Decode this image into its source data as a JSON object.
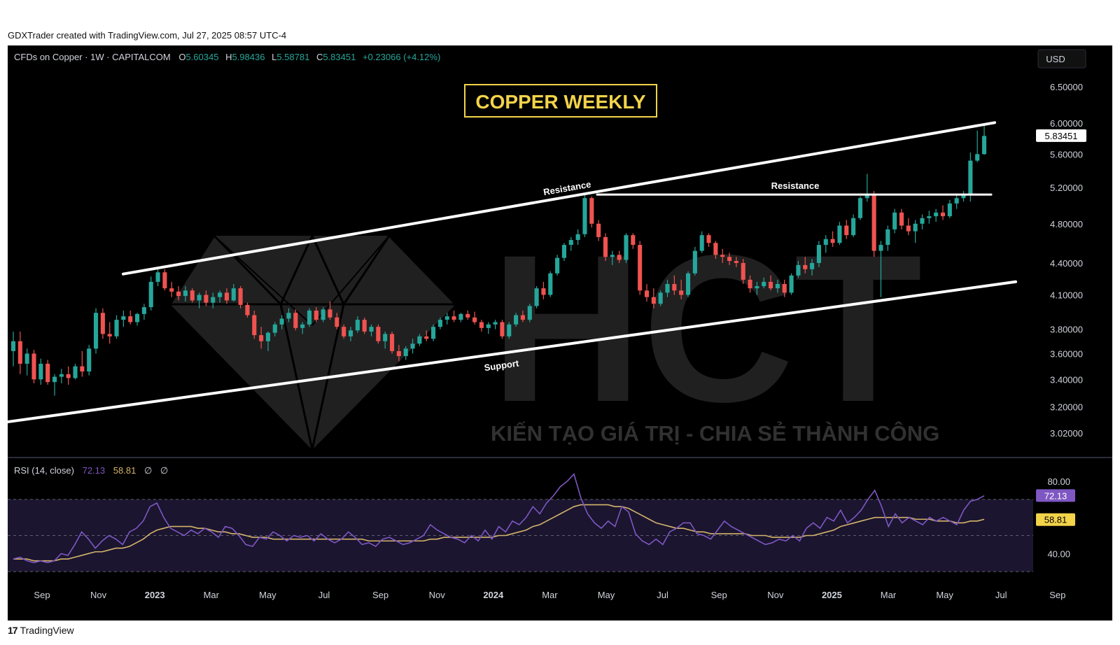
{
  "credit": "GDXTrader created with TradingView.com, Jul 27, 2025 08:57 UTC-4",
  "footer": {
    "logo_glyph": "17",
    "brand": "TradingView"
  },
  "colors": {
    "up": "#26a69a",
    "down": "#ef5350",
    "rsi": "#7e57c2",
    "rsi_ma": "#d4b46a",
    "title_accent": "#f3d34a",
    "background": "#000000"
  },
  "header": {
    "symbol": "CFDs on Copper · 1W · CAPITALCOM",
    "o_label": "O",
    "o_value": "5.60345",
    "h_label": "H",
    "h_value": "5.98436",
    "l_label": "L",
    "l_value": "5.58781",
    "c_label": "C",
    "c_value": "5.83451",
    "change": "+0.23066 (+4.12%)"
  },
  "currency": "USD",
  "banner_title": "COPPER WEEKLY",
  "watermark": {
    "logo_text": "HCT",
    "tagline": "KIẾN TẠO GIÁ TRỊ - CHIA SẺ THÀNH CÔNG"
  },
  "annotations": {
    "resistance_1": "Resistance",
    "resistance_2": "Resistance",
    "support": "Support"
  },
  "price_axis": [
    "6.50000",
    "6.00000",
    "5.60000",
    "5.20000",
    "4.80000",
    "4.40000",
    "4.10000",
    "3.80000",
    "3.60000",
    "3.40000",
    "3.20000",
    "3.02000"
  ],
  "last_price_label": "5.83451",
  "rsi_header": {
    "label": "RSI (14, close)",
    "rsi_value": "72.13",
    "ma_value": "58.81",
    "icon_a": "∅",
    "icon_b": "∅"
  },
  "rsi_axis": [
    "80.00",
    "40.00"
  ],
  "rsi_badges": {
    "rsi": "72.13",
    "ma": "58.81"
  },
  "time_axis": [
    "Sep",
    "Nov",
    "2023",
    "Mar",
    "May",
    "Jul",
    "Sep",
    "Nov",
    "2024",
    "Mar",
    "May",
    "Jul",
    "Sep",
    "Nov",
    "2025",
    "Mar",
    "May",
    "Jul",
    "Sep"
  ],
  "chart_data": {
    "type": "candlestick",
    "title": "COPPER WEEKLY",
    "symbol": "CFDs on Copper · 1W · CAPITALCOM",
    "x_range": [
      "2022-08-15",
      "2025-07-21"
    ],
    "y_scale": "log",
    "y_range": [
      2.9,
      6.8
    ],
    "candles_ohlc": [
      [
        3.62,
        3.78,
        3.5,
        3.7
      ],
      [
        3.7,
        3.78,
        3.44,
        3.52
      ],
      [
        3.52,
        3.64,
        3.43,
        3.6
      ],
      [
        3.6,
        3.63,
        3.37,
        3.4
      ],
      [
        3.4,
        3.56,
        3.36,
        3.52
      ],
      [
        3.52,
        3.55,
        3.36,
        3.38
      ],
      [
        3.38,
        3.44,
        3.28,
        3.42
      ],
      [
        3.42,
        3.48,
        3.37,
        3.44
      ],
      [
        3.44,
        3.5,
        3.36,
        3.41
      ],
      [
        3.41,
        3.52,
        3.4,
        3.5
      ],
      [
        3.5,
        3.62,
        3.42,
        3.46
      ],
      [
        3.46,
        3.67,
        3.43,
        3.64
      ],
      [
        3.64,
        3.98,
        3.6,
        3.94
      ],
      [
        3.94,
        3.98,
        3.72,
        3.76
      ],
      [
        3.76,
        3.86,
        3.68,
        3.74
      ],
      [
        3.74,
        3.92,
        3.72,
        3.88
      ],
      [
        3.88,
        3.96,
        3.82,
        3.91
      ],
      [
        3.91,
        3.96,
        3.84,
        3.86
      ],
      [
        3.86,
        3.94,
        3.83,
        3.93
      ],
      [
        3.93,
        4.02,
        3.88,
        3.99
      ],
      [
        3.99,
        4.27,
        3.96,
        4.22
      ],
      [
        4.22,
        4.36,
        4.18,
        4.31
      ],
      [
        4.31,
        4.34,
        4.14,
        4.16
      ],
      [
        4.16,
        4.22,
        4.08,
        4.13
      ],
      [
        4.13,
        4.18,
        4.05,
        4.09
      ],
      [
        4.09,
        4.18,
        4.04,
        4.14
      ],
      [
        4.14,
        4.16,
        4.03,
        4.05
      ],
      [
        4.05,
        4.12,
        3.98,
        4.1
      ],
      [
        4.1,
        4.14,
        4.0,
        4.03
      ],
      [
        4.03,
        4.12,
        3.98,
        4.08
      ],
      [
        4.08,
        4.14,
        4.03,
        4.12
      ],
      [
        4.12,
        4.16,
        4.02,
        4.05
      ],
      [
        4.05,
        4.2,
        4.04,
        4.16
      ],
      [
        4.16,
        4.18,
        3.98,
        4.01
      ],
      [
        4.01,
        4.03,
        3.9,
        3.92
      ],
      [
        3.92,
        3.96,
        3.72,
        3.75
      ],
      [
        3.75,
        3.82,
        3.64,
        3.7
      ],
      [
        3.7,
        3.78,
        3.62,
        3.77
      ],
      [
        3.77,
        3.86,
        3.74,
        3.84
      ],
      [
        3.84,
        3.92,
        3.8,
        3.89
      ],
      [
        3.89,
        3.98,
        3.86,
        3.94
      ],
      [
        3.94,
        3.97,
        3.79,
        3.81
      ],
      [
        3.81,
        3.86,
        3.76,
        3.84
      ],
      [
        3.84,
        3.98,
        3.82,
        3.96
      ],
      [
        3.96,
        3.99,
        3.86,
        3.88
      ],
      [
        3.88,
        3.99,
        3.86,
        3.97
      ],
      [
        3.97,
        4.04,
        3.88,
        3.9
      ],
      [
        3.9,
        3.94,
        3.8,
        3.82
      ],
      [
        3.82,
        3.84,
        3.72,
        3.74
      ],
      [
        3.74,
        3.82,
        3.7,
        3.79
      ],
      [
        3.79,
        3.91,
        3.77,
        3.88
      ],
      [
        3.88,
        3.9,
        3.76,
        3.78
      ],
      [
        3.78,
        3.84,
        3.74,
        3.82
      ],
      [
        3.82,
        3.84,
        3.68,
        3.7
      ],
      [
        3.7,
        3.78,
        3.64,
        3.76
      ],
      [
        3.76,
        3.78,
        3.6,
        3.62
      ],
      [
        3.62,
        3.67,
        3.54,
        3.58
      ],
      [
        3.58,
        3.66,
        3.55,
        3.64
      ],
      [
        3.64,
        3.72,
        3.6,
        3.68
      ],
      [
        3.68,
        3.76,
        3.66,
        3.74
      ],
      [
        3.74,
        3.79,
        3.7,
        3.72
      ],
      [
        3.72,
        3.84,
        3.7,
        3.82
      ],
      [
        3.82,
        3.9,
        3.8,
        3.88
      ],
      [
        3.88,
        3.94,
        3.84,
        3.91
      ],
      [
        3.91,
        3.96,
        3.86,
        3.88
      ],
      [
        3.88,
        3.94,
        3.86,
        3.93
      ],
      [
        3.93,
        3.96,
        3.88,
        3.9
      ],
      [
        3.9,
        3.95,
        3.84,
        3.86
      ],
      [
        3.86,
        3.88,
        3.78,
        3.81
      ],
      [
        3.81,
        3.86,
        3.76,
        3.84
      ],
      [
        3.84,
        3.88,
        3.8,
        3.86
      ],
      [
        3.86,
        3.88,
        3.72,
        3.74
      ],
      [
        3.74,
        3.86,
        3.72,
        3.84
      ],
      [
        3.84,
        3.94,
        3.82,
        3.92
      ],
      [
        3.92,
        3.96,
        3.86,
        3.88
      ],
      [
        3.88,
        4.02,
        3.86,
        4.0
      ],
      [
        4.0,
        4.18,
        3.98,
        4.16
      ],
      [
        4.16,
        4.22,
        4.06,
        4.1
      ],
      [
        4.1,
        4.32,
        4.08,
        4.3
      ],
      [
        4.3,
        4.48,
        4.28,
        4.45
      ],
      [
        4.45,
        4.6,
        4.42,
        4.58
      ],
      [
        4.58,
        4.66,
        4.52,
        4.63
      ],
      [
        4.63,
        4.74,
        4.58,
        4.69
      ],
      [
        4.69,
        5.12,
        4.66,
        5.08
      ],
      [
        5.08,
        5.1,
        4.76,
        4.8
      ],
      [
        4.8,
        4.84,
        4.62,
        4.66
      ],
      [
        4.66,
        4.7,
        4.42,
        4.46
      ],
      [
        4.46,
        4.52,
        4.38,
        4.48
      ],
      [
        4.48,
        4.52,
        4.4,
        4.43
      ],
      [
        4.43,
        4.7,
        4.4,
        4.68
      ],
      [
        4.68,
        4.7,
        4.54,
        4.58
      ],
      [
        4.58,
        4.62,
        4.1,
        4.14
      ],
      [
        4.14,
        4.2,
        4.04,
        4.08
      ],
      [
        4.08,
        4.16,
        3.98,
        4.02
      ],
      [
        4.02,
        4.14,
        4.0,
        4.12
      ],
      [
        4.12,
        4.24,
        4.08,
        4.2
      ],
      [
        4.2,
        4.28,
        4.1,
        4.14
      ],
      [
        4.14,
        4.24,
        4.06,
        4.1
      ],
      [
        4.1,
        4.32,
        4.08,
        4.3
      ],
      [
        4.3,
        4.56,
        4.28,
        4.52
      ],
      [
        4.52,
        4.72,
        4.5,
        4.68
      ],
      [
        4.68,
        4.7,
        4.56,
        4.6
      ],
      [
        4.6,
        4.62,
        4.44,
        4.48
      ],
      [
        4.48,
        4.54,
        4.4,
        4.46
      ],
      [
        4.46,
        4.5,
        4.38,
        4.42
      ],
      [
        4.42,
        4.46,
        4.36,
        4.4
      ],
      [
        4.4,
        4.44,
        4.2,
        4.24
      ],
      [
        4.24,
        4.28,
        4.12,
        4.16
      ],
      [
        4.16,
        4.22,
        4.1,
        4.18
      ],
      [
        4.18,
        4.26,
        4.16,
        4.22
      ],
      [
        4.22,
        4.28,
        4.14,
        4.16
      ],
      [
        4.16,
        4.24,
        4.12,
        4.2
      ],
      [
        4.2,
        4.24,
        4.08,
        4.12
      ],
      [
        4.12,
        4.3,
        4.1,
        4.28
      ],
      [
        4.28,
        4.42,
        4.26,
        4.38
      ],
      [
        4.38,
        4.46,
        4.3,
        4.34
      ],
      [
        4.34,
        4.44,
        4.28,
        4.4
      ],
      [
        4.4,
        4.62,
        4.36,
        4.58
      ],
      [
        4.58,
        4.68,
        4.5,
        4.64
      ],
      [
        4.64,
        4.72,
        4.56,
        4.6
      ],
      [
        4.6,
        4.82,
        4.58,
        4.78
      ],
      [
        4.78,
        4.84,
        4.64,
        4.68
      ],
      [
        4.68,
        4.9,
        4.66,
        4.86
      ],
      [
        4.86,
        5.1,
        4.84,
        5.08
      ],
      [
        5.08,
        5.36,
        5.04,
        5.12
      ],
      [
        5.12,
        5.16,
        4.46,
        4.52
      ],
      [
        4.52,
        4.62,
        4.08,
        4.58
      ],
      [
        4.58,
        4.78,
        4.52,
        4.74
      ],
      [
        4.74,
        4.96,
        4.7,
        4.92
      ],
      [
        4.92,
        4.96,
        4.74,
        4.78
      ],
      [
        4.78,
        4.86,
        4.68,
        4.72
      ],
      [
        4.72,
        4.84,
        4.6,
        4.8
      ],
      [
        4.8,
        4.9,
        4.74,
        4.86
      ],
      [
        4.86,
        4.94,
        4.8,
        4.88
      ],
      [
        4.88,
        4.96,
        4.82,
        4.92
      ],
      [
        4.92,
        5.0,
        4.84,
        4.88
      ],
      [
        4.88,
        5.06,
        4.86,
        5.02
      ],
      [
        5.02,
        5.12,
        4.96,
        5.08
      ],
      [
        5.08,
        5.16,
        5.04,
        5.12
      ],
      [
        5.12,
        5.62,
        5.04,
        5.52
      ],
      [
        5.52,
        5.9,
        5.5,
        5.6
      ],
      [
        5.6,
        5.98,
        5.59,
        5.83
      ]
    ],
    "trendlines": [
      {
        "name": "Resistance",
        "from": [
          "2022-12-05",
          4.28
        ],
        "to": [
          "2025-07-21",
          5.98
        ]
      },
      {
        "name": "Support",
        "from": [
          "2022-08-15",
          3.1
        ],
        "to": [
          "2025-07-21",
          4.18
        ]
      },
      {
        "name": "Resistance",
        "from": [
          "2024-05-20",
          5.12
        ],
        "to": [
          "2025-07-14",
          5.12
        ]
      }
    ],
    "rsi": {
      "period": 14,
      "y_range": [
        20,
        92
      ],
      "levels": [
        70,
        50,
        30
      ],
      "rsi_values": [
        37,
        38,
        36,
        35,
        36,
        35,
        36,
        40,
        39,
        45,
        52,
        48,
        43,
        47,
        50,
        48,
        45,
        52,
        54,
        58,
        66,
        68,
        60,
        54,
        52,
        50,
        53,
        51,
        54,
        52,
        49,
        55,
        54,
        50,
        45,
        44,
        49,
        48,
        52,
        50,
        47,
        50,
        49,
        50,
        47,
        51,
        48,
        46,
        48,
        52,
        49,
        45,
        46,
        44,
        48,
        49,
        47,
        45,
        46,
        48,
        50,
        56,
        53,
        51,
        49,
        48,
        46,
        50,
        47,
        53,
        48,
        55,
        52,
        58,
        56,
        60,
        66,
        62,
        68,
        72,
        77,
        80,
        84,
        71,
        62,
        57,
        54,
        58,
        55,
        66,
        63,
        51,
        47,
        45,
        48,
        45,
        52,
        54,
        57,
        57,
        51,
        50,
        48,
        53,
        58,
        55,
        53,
        51,
        49,
        47,
        45,
        46,
        48,
        47,
        50,
        47,
        54,
        57,
        54,
        60,
        58,
        64,
        57,
        60,
        64,
        70,
        75,
        66,
        55,
        62,
        57,
        60,
        58,
        56,
        60,
        58,
        60,
        58,
        56,
        64,
        69,
        70,
        72
      ],
      "ma_values": [
        37,
        37,
        37,
        36,
        36,
        36,
        36,
        37,
        37,
        38,
        39,
        40,
        41,
        41,
        42,
        43,
        43,
        44,
        46,
        48,
        51,
        53,
        54,
        55,
        55,
        55,
        55,
        54,
        54,
        53,
        52,
        52,
        51,
        51,
        50,
        49,
        49,
        49,
        48,
        48,
        48,
        48,
        48,
        48,
        48,
        48,
        48,
        48,
        48,
        48,
        48,
        48,
        47,
        47,
        47,
        47,
        47,
        47,
        47,
        47,
        47,
        48,
        48,
        49,
        49,
        49,
        49,
        49,
        49,
        49,
        49,
        50,
        50,
        51,
        52,
        53,
        55,
        56,
        58,
        60,
        62,
        64,
        66,
        67,
        67,
        67,
        67,
        67,
        66,
        66,
        65,
        63,
        61,
        59,
        57,
        56,
        55,
        54,
        54,
        53,
        52,
        52,
        51,
        51,
        51,
        51,
        51,
        51,
        50,
        50,
        50,
        49,
        49,
        49,
        49,
        49,
        50,
        50,
        51,
        52,
        53,
        55,
        56,
        57,
        58,
        59,
        60,
        60,
        60,
        60,
        60,
        60,
        59,
        59,
        59,
        58,
        58,
        58,
        57,
        57,
        58,
        58,
        59
      ]
    }
  }
}
